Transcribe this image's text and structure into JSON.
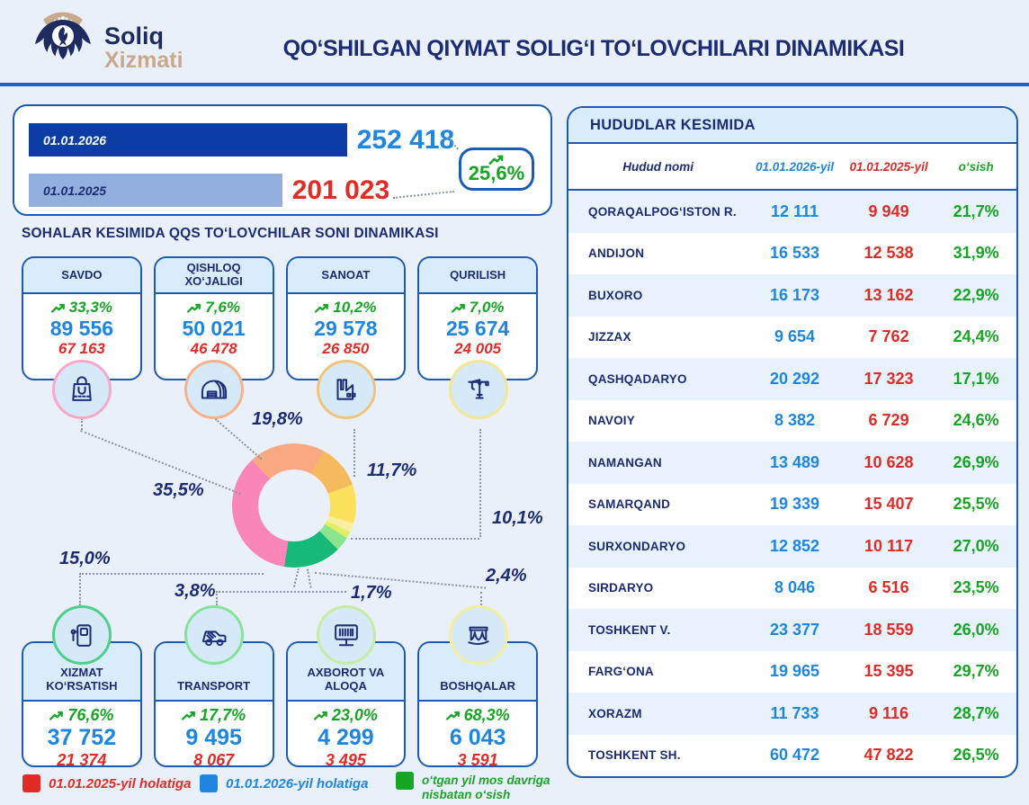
{
  "header": {
    "logo_line1": "Soliq",
    "logo_line2": "Xizmati",
    "title": "QO‘SHILGAN QIYMAT SOLIG‘I TO‘LOVCHILARI DINAMIKASI"
  },
  "overview": {
    "bars": [
      {
        "label": "01.01.2026",
        "value": "252 418"
      },
      {
        "label": "01.01.2025",
        "value": "201 023"
      }
    ],
    "growth": "25,6%"
  },
  "sectors_title": "SOHALAR KESIMIDA QQS TO‘LOVCHILAR SONI DINAMIKASI",
  "sectors": [
    {
      "name": "SAVDO",
      "growth": "33,3%",
      "value_2026": "89 556",
      "value_2025": "67 163",
      "share": "35,5%",
      "color": "#F986B6",
      "icon": "shopping-bag-icon"
    },
    {
      "name": "QISHLOQ XO‘JALIGI",
      "growth": "7,6%",
      "value_2026": "50 021",
      "value_2025": "46 478",
      "share": "19,8%",
      "color": "#F8A981",
      "icon": "greenhouse-icon"
    },
    {
      "name": "SANOAT",
      "growth": "10,2%",
      "value_2026": "29 578",
      "value_2025": "26 850",
      "share": "11,7%",
      "color": "#F6BA5E",
      "icon": "factory-icon"
    },
    {
      "name": "QURILISH",
      "growth": "7,0%",
      "value_2026": "25 674",
      "value_2025": "24 005",
      "share": "10,1%",
      "color": "#FBE15C",
      "icon": "crane-icon"
    },
    {
      "name": "XIZMAT KO‘RSATISH",
      "growth": "76,6%",
      "value_2026": "37 752",
      "value_2025": "21 374",
      "share": "15,0%",
      "color": "#17B978",
      "icon": "fuel-pump-icon"
    },
    {
      "name": "TRANSPORT",
      "growth": "17,7%",
      "value_2026": "9 495",
      "value_2025": "8 067",
      "share": "3,8%",
      "color": "#8BE48F",
      "icon": "truck-icon"
    },
    {
      "name": "AXBOROT VA ALOQA",
      "growth": "23,0%",
      "value_2026": "4 299",
      "value_2025": "3 495",
      "share": "1,7%",
      "color": "#E3EE62",
      "icon": "monitor-icon"
    },
    {
      "name": "BOSHQALAR",
      "growth": "68,3%",
      "value_2026": "6 043",
      "value_2025": "3 591",
      "share": "2,4%",
      "color": "#F8F0A0",
      "icon": "arches-icon"
    }
  ],
  "regions": {
    "title": "HUDUDLAR KESIMIDA",
    "columns": [
      "Hudud nomi",
      "01.01.2026-yil",
      "01.01.2025-yil",
      "o‘sish"
    ],
    "rows": [
      {
        "name": "QORAQALPOG‘ISTON R.",
        "v2026": "12 111",
        "v2025": "9 949",
        "growth": "21,7%"
      },
      {
        "name": "ANDIJON",
        "v2026": "16 533",
        "v2025": "12 538",
        "growth": "31,9%"
      },
      {
        "name": "BUXORO",
        "v2026": "16 173",
        "v2025": "13 162",
        "growth": "22,9%"
      },
      {
        "name": "JIZZAX",
        "v2026": "9 654",
        "v2025": "7 762",
        "growth": "24,4%"
      },
      {
        "name": "QASHQADARYO",
        "v2026": "20 292",
        "v2025": "17 323",
        "growth": "17,1%"
      },
      {
        "name": "NAVOIY",
        "v2026": "8 382",
        "v2025": "6 729",
        "growth": "24,6%"
      },
      {
        "name": "NAMANGAN",
        "v2026": "13 489",
        "v2025": "10 628",
        "growth": "26,9%"
      },
      {
        "name": "SAMARQAND",
        "v2026": "19 339",
        "v2025": "15 407",
        "growth": "25,5%"
      },
      {
        "name": "SURXONDARYO",
        "v2026": "12 852",
        "v2025": "10 117",
        "growth": "27,0%"
      },
      {
        "name": "SIRDARYO",
        "v2026": "8 046",
        "v2025": "6 516",
        "growth": "23,5%"
      },
      {
        "name": "TOSHKENT V.",
        "v2026": "23 377",
        "v2025": "18 559",
        "growth": "26,0%"
      },
      {
        "name": "FARG‘ONA",
        "v2026": "19 965",
        "v2025": "15 395",
        "growth": "29,7%"
      },
      {
        "name": "XORAZM",
        "v2026": "11 733",
        "v2025": "9 116",
        "growth": "28,7%"
      },
      {
        "name": "TOSHKENT SH.",
        "v2026": "60 472",
        "v2025": "47 822",
        "growth": "26,5%"
      }
    ]
  },
  "legend": [
    {
      "label": "01.01.2025-yil holatiga",
      "color": "#E02B26"
    },
    {
      "label": "01.01.2026-yil holatiga",
      "color": "#1E86E0"
    },
    {
      "label": "o‘tgan yil mos davriga nisbatan o‘sish",
      "color": "#18A525"
    }
  ],
  "chart_data": [
    {
      "type": "bar",
      "title": "QQS to‘lovchilari soni dinamikasi",
      "categories": [
        "01.01.2026",
        "01.01.2025"
      ],
      "values": [
        252418,
        201023
      ],
      "growth_pct": 25.6,
      "colors": [
        "#0C3DA4",
        "#93AFDE"
      ],
      "value_labels": [
        "252 418",
        "201 023"
      ]
    },
    {
      "type": "pie",
      "title": "Sohalar kesimida QQS to‘lovchilar ulushi (%)",
      "start_angle_deg": 317,
      "segments": [
        {
          "label": "QISHLOQ XO‘JALIGI",
          "value": 19.8,
          "color": "#F8A981"
        },
        {
          "label": "SANOAT",
          "value": 11.7,
          "color": "#F6BA5E"
        },
        {
          "label": "QURILISH",
          "value": 10.1,
          "color": "#FBE15C"
        },
        {
          "label": "BOSHQALAR",
          "value": 2.4,
          "color": "#F8F0A0"
        },
        {
          "label": "AXBOROT VA ALOQA",
          "value": 1.7,
          "color": "#E3EE62"
        },
        {
          "label": "TRANSPORT",
          "value": 3.8,
          "color": "#8BE48F"
        },
        {
          "label": "XIZMAT KO‘RSATISH",
          "value": 15.0,
          "color": "#17B978"
        },
        {
          "label": "SAVDO",
          "value": 35.5,
          "color": "#F986B6"
        }
      ]
    }
  ]
}
